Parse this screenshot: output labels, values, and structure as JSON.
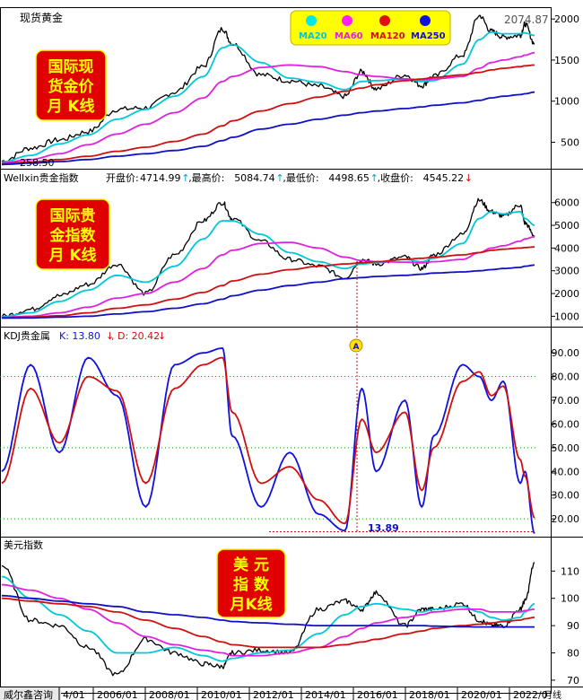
{
  "colors": {
    "background": "#ffffff",
    "price": "#000000",
    "ma20": "#00c8d8",
    "ma60": "#e020e0",
    "ma120": "#d01010",
    "ma250": "#1010c8",
    "kdj_k": "#1010e0",
    "kdj_d": "#d01010",
    "grid": "#00a000",
    "label_box": "#e00000",
    "label_text": "#ffff00",
    "legend_box": "#ffff00",
    "up_arrow": "#00a0c0",
    "down_arrow": "#e00000"
  },
  "panels": {
    "gold": {
      "title": "现货黄金",
      "label": [
        "国际现",
        "货金价",
        "月 K线"
      ],
      "annotations": {
        "high": "2074.87",
        "low": "258.50"
      }
    },
    "index": {
      "title": "Wellxin贵金指数",
      "stats": [
        {
          "label": "开盘价:",
          "value": "4714.99",
          "arrow": "↑"
        },
        {
          "label": ",最高价:",
          "value": "5084.74",
          "arrow": "↑"
        },
        {
          "label": ",最低价:",
          "value": "4498.65",
          "arrow": "↑"
        },
        {
          "label": ",收盘价:",
          "value": "4545.22",
          "arrow": "↓"
        }
      ],
      "label": [
        "国际贵",
        "金指数",
        "月 K线"
      ]
    },
    "kdj": {
      "title": "KDJ贵金属",
      "k_label": "K: 13.80",
      "k_arrow": "↓",
      "d_label": ", D: 20.42",
      "d_arrow": "↓",
      "low_annotation": "13.89",
      "marker": "A"
    },
    "usd": {
      "title": "美元指数",
      "label": [
        "美  元",
        "指  数",
        "月K线"
      ]
    }
  },
  "legend": [
    "MA20",
    "MA60",
    "MA120",
    "MA250"
  ],
  "footer": {
    "watermark": "威尔鑫咨询",
    "period": "月线",
    "x_labels": [
      "4/01",
      "2006/01",
      "2008/01",
      "2010/01",
      "2012/01",
      "2014/01",
      "2016/01",
      "2018/01",
      "2020/01",
      "2022/0"
    ]
  },
  "chart_data": [
    {
      "type": "line",
      "title": "现货黄金",
      "y_ticks": [
        500,
        1000,
        1500,
        2000
      ],
      "ylim": [
        200,
        2100
      ],
      "x": [
        "2004/01",
        "2005/01",
        "2006/01",
        "2007/01",
        "2008/01",
        "2009/01",
        "2010/01",
        "2011/01",
        "2011/09",
        "2012/01",
        "2013/01",
        "2014/01",
        "2015/01",
        "2015/12",
        "2016/07",
        "2017/01",
        "2018/01",
        "2018/08",
        "2019/01",
        "2020/01",
        "2020/08",
        "2021/01",
        "2021/06",
        "2022/01",
        "2022/03",
        "2022/07"
      ],
      "series": [
        {
          "name": "price",
          "values": [
            270,
            430,
            530,
            630,
            900,
            920,
            1110,
            1420,
            1880,
            1700,
            1320,
            1250,
            1180,
            1060,
            1360,
            1150,
            1320,
            1190,
            1300,
            1560,
            2040,
            1850,
            1780,
            1800,
            1940,
            1700
          ]
        },
        {
          "name": "MA20",
          "values": [
            260,
            340,
            480,
            590,
            780,
            900,
            1060,
            1300,
            1650,
            1690,
            1470,
            1280,
            1230,
            1140,
            1240,
            1250,
            1270,
            1240,
            1250,
            1450,
            1750,
            1840,
            1820,
            1820,
            1830,
            1800
          ]
        },
        {
          "name": "MA60",
          "values": [
            250,
            290,
            360,
            470,
            600,
            720,
            860,
            1040,
            1240,
            1300,
            1410,
            1440,
            1420,
            1360,
            1320,
            1300,
            1270,
            1260,
            1270,
            1300,
            1400,
            1470,
            1500,
            1540,
            1560,
            1590
          ]
        },
        {
          "name": "MA120",
          "values": [
            240,
            260,
            290,
            330,
            390,
            440,
            510,
            600,
            700,
            760,
            880,
            970,
            1050,
            1120,
            1160,
            1200,
            1250,
            1270,
            1290,
            1320,
            1350,
            1380,
            1400,
            1420,
            1430,
            1440
          ]
        },
        {
          "name": "MA250",
          "values": [
            230,
            245,
            265,
            290,
            330,
            360,
            400,
            450,
            520,
            560,
            660,
            720,
            780,
            830,
            860,
            880,
            910,
            930,
            950,
            980,
            1010,
            1040,
            1060,
            1080,
            1090,
            1110
          ]
        }
      ],
      "annotations": [
        {
          "x": "2022/03",
          "text": "2074.87"
        },
        {
          "x": "2004/01",
          "text": "258.50"
        }
      ]
    },
    {
      "type": "line",
      "title": "Wellxin贵金指数",
      "y_ticks": [
        1000,
        2000,
        3000,
        4000,
        5000,
        6000
      ],
      "ylim": [
        700,
        6700
      ],
      "x": [
        "2004/01",
        "2005/01",
        "2006/01",
        "2007/01",
        "2008/01",
        "2009/01",
        "2010/01",
        "2011/01",
        "2011/09",
        "2012/01",
        "2013/01",
        "2014/01",
        "2015/01",
        "2015/12",
        "2016/07",
        "2017/01",
        "2018/01",
        "2018/08",
        "2019/01",
        "2020/01",
        "2020/08",
        "2021/01",
        "2021/06",
        "2022/01",
        "2022/03",
        "2022/07"
      ],
      "series": [
        {
          "name": "index",
          "values": [
            1000,
            1300,
            1900,
            2400,
            3300,
            2000,
            3700,
            5200,
            6000,
            5300,
            4300,
            3500,
            3200,
            2700,
            3500,
            3300,
            3600,
            3100,
            3700,
            4600,
            6100,
            5600,
            5400,
            5900,
            5100,
            4545
          ]
        },
        {
          "name": "MA20",
          "values": [
            980,
            1150,
            1650,
            2150,
            2800,
            2500,
            3200,
            4400,
            5200,
            5200,
            4600,
            3800,
            3400,
            3100,
            3300,
            3350,
            3500,
            3400,
            3550,
            4200,
            5300,
            5600,
            5500,
            5600,
            5300,
            5000
          ]
        },
        {
          "name": "MA60",
          "values": [
            950,
            1000,
            1150,
            1400,
            1800,
            2000,
            2500,
            3100,
            3700,
            3900,
            4200,
            4250,
            4000,
            3600,
            3450,
            3400,
            3380,
            3350,
            3400,
            3500,
            3800,
            4000,
            4100,
            4300,
            4400,
            4500
          ]
        },
        {
          "name": "MA120",
          "values": [
            930,
            960,
            1020,
            1150,
            1350,
            1500,
            1750,
            2050,
            2350,
            2550,
            2850,
            3050,
            3200,
            3300,
            3350,
            3400,
            3500,
            3550,
            3600,
            3700,
            3800,
            3900,
            3950,
            4000,
            4020,
            4050
          ]
        },
        {
          "name": "MA250",
          "values": [
            920,
            930,
            960,
            1000,
            1100,
            1200,
            1350,
            1550,
            1750,
            1900,
            2150,
            2350,
            2500,
            2650,
            2700,
            2750,
            2800,
            2850,
            2900,
            2950,
            3000,
            3050,
            3100,
            3150,
            3200,
            3250
          ]
        }
      ]
    },
    {
      "type": "line",
      "title": "KDJ贵金属",
      "y_ticks": [
        20,
        30,
        40,
        50,
        60,
        70,
        80,
        90
      ],
      "ylim": [
        14,
        95
      ],
      "gridlines": [
        20,
        50,
        80
      ],
      "x": [
        "2004/01",
        "2005/01",
        "2006/01",
        "2007/01",
        "2008/01",
        "2009/01",
        "2010/01",
        "2011/01",
        "2011/09",
        "2012/01",
        "2013/01",
        "2014/01",
        "2015/01",
        "2015/12",
        "2016/07",
        "2017/01",
        "2018/01",
        "2018/08",
        "2019/01",
        "2020/01",
        "2020/08",
        "2021/01",
        "2021/06",
        "2022/01",
        "2022/03",
        "2022/07"
      ],
      "series": [
        {
          "name": "K",
          "values": [
            40,
            85,
            48,
            88,
            72,
            25,
            85,
            90,
            92,
            55,
            25,
            48,
            22,
            15,
            75,
            40,
            70,
            25,
            55,
            85,
            80,
            70,
            78,
            35,
            40,
            13.8
          ]
        },
        {
          "name": "D",
          "values": [
            35,
            75,
            52,
            80,
            74,
            35,
            75,
            85,
            88,
            65,
            35,
            42,
            28,
            18,
            62,
            48,
            65,
            32,
            50,
            78,
            82,
            72,
            76,
            45,
            38,
            20.42
          ]
        }
      ],
      "annotations": [
        {
          "x": "2015/12",
          "text": "13.89"
        },
        {
          "x": "2015/12",
          "text": "A"
        }
      ]
    },
    {
      "type": "line",
      "title": "美元指数",
      "y_ticks": [
        70,
        80,
        90,
        100,
        110
      ],
      "ylim": [
        68,
        118
      ],
      "x": [
        "2004/01",
        "2005/01",
        "2006/01",
        "2007/01",
        "2008/01",
        "2009/01",
        "2010/01",
        "2011/01",
        "2011/09",
        "2012/01",
        "2013/01",
        "2014/01",
        "2015/01",
        "2015/12",
        "2016/07",
        "2017/01",
        "2018/01",
        "2018/08",
        "2019/01",
        "2020/01",
        "2020/08",
        "2021/01",
        "2021/06",
        "2022/01",
        "2022/03",
        "2022/07"
      ],
      "series": [
        {
          "name": "USD",
          "values": [
            112,
            92,
            90,
            82,
            72,
            85,
            80,
            76,
            75,
            80,
            81,
            80,
            96,
            99,
            96,
            102,
            90,
            96,
            96,
            98,
            92,
            90,
            90,
            96,
            99,
            113
          ]
        },
        {
          "name": "MA20",
          "values": [
            108,
            100,
            94,
            88,
            80,
            80,
            82,
            79,
            77,
            78,
            80,
            81,
            87,
            94,
            97,
            98,
            96,
            95,
            96,
            97,
            95,
            93,
            92,
            93,
            95,
            98
          ]
        },
        {
          "name": "MA60",
          "values": [
            105,
            103,
            100,
            96,
            91,
            86,
            83,
            81,
            80,
            79,
            79,
            80,
            82,
            86,
            89,
            91,
            93,
            94,
            95,
            96,
            96,
            95,
            95,
            95,
            95.5,
            96
          ]
        },
        {
          "name": "MA120",
          "values": [
            100,
            99,
            98,
            97,
            95,
            92,
            89,
            86,
            84,
            83,
            82,
            82,
            82,
            83,
            84,
            85,
            87,
            88,
            89,
            90,
            90.5,
            91,
            91.5,
            92,
            92.5,
            93
          ]
        },
        {
          "name": "MA250",
          "values": [
            101,
            100,
            99,
            98,
            97,
            95,
            94,
            93,
            92,
            91.5,
            91,
            90.5,
            90,
            90,
            90,
            90,
            90,
            90,
            89.8,
            89.6,
            89.5,
            89.5,
            89.5,
            89.5,
            89.5,
            89.5
          ]
        }
      ]
    }
  ]
}
